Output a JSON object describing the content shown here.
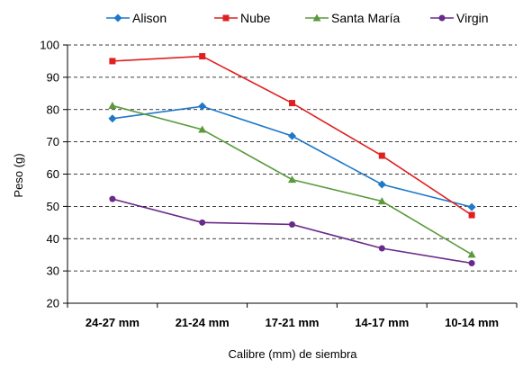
{
  "chart_data": {
    "type": "line",
    "title": "",
    "xlabel": "Calibre (mm) de siembra",
    "ylabel": "Peso (g)",
    "categories": [
      "24-27 mm",
      "21-24 mm",
      "17-21 mm",
      "14-17 mm",
      "10-14 mm"
    ],
    "ylim": [
      20,
      100
    ],
    "yticks": [
      20,
      30,
      40,
      50,
      60,
      70,
      80,
      90,
      100
    ],
    "grid": "horizontal-dashed",
    "legend_position": "top",
    "series": [
      {
        "name": "Alison",
        "color": "#1f78c8",
        "marker": "diamond",
        "values": [
          77.2,
          81.0,
          71.8,
          56.8,
          49.8
        ]
      },
      {
        "name": "Nube",
        "color": "#e02020",
        "marker": "square",
        "values": [
          95.0,
          96.5,
          82.0,
          65.7,
          47.3
        ]
      },
      {
        "name": "Santa María",
        "color": "#5a9a3c",
        "marker": "triangle",
        "values": [
          81.2,
          73.8,
          58.3,
          51.6,
          35.1
        ]
      },
      {
        "name": "Virgin",
        "color": "#6a2a8a",
        "marker": "circle",
        "values": [
          52.3,
          45.0,
          44.4,
          37.0,
          32.4
        ]
      }
    ]
  }
}
